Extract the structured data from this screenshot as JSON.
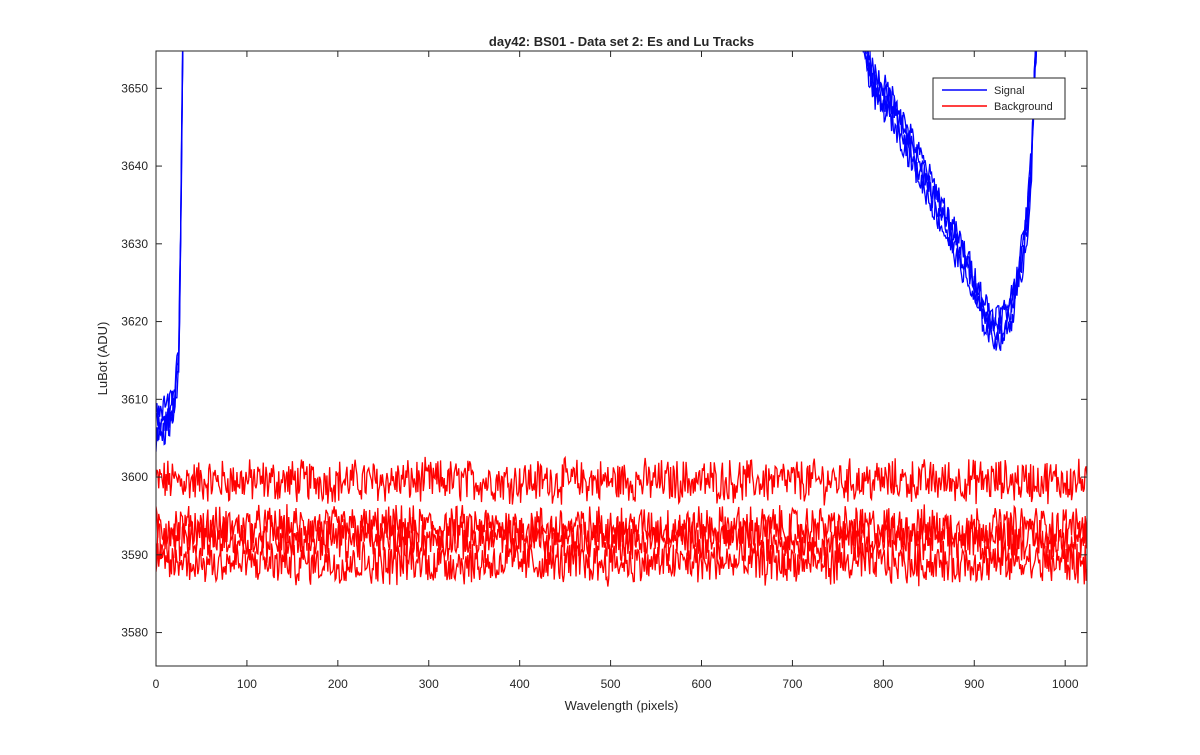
{
  "chart_data": {
    "type": "line",
    "title": "day42: BS01 - Data set 2: Es and Lu Tracks",
    "xlabel": "Wavelength (pixels)",
    "ylabel": "LuBot (ADU)",
    "xlim": [
      0,
      1024
    ],
    "ylim": [
      3575.7,
      3654.8
    ],
    "xticks": [
      0,
      100,
      200,
      300,
      400,
      500,
      600,
      700,
      800,
      900,
      1000
    ],
    "yticks": [
      3580,
      3590,
      3600,
      3610,
      3620,
      3630,
      3640,
      3650
    ],
    "grid": false,
    "legend_position": "top-right",
    "colors": {
      "Signal": "#0000ff",
      "Background": "#ff0000"
    },
    "legend": [
      "Signal",
      "Background"
    ],
    "series": [
      {
        "name": "Signal",
        "color": "#0000ff",
        "traces": 4,
        "x": [
          0,
          10,
          20,
          25,
          27,
          29,
          30,
          770,
          790,
          810,
          830,
          850,
          870,
          890,
          910,
          920,
          930,
          940,
          950,
          958,
          963,
          966,
          970
        ],
        "y": [
          3606,
          3607,
          3609,
          3615,
          3630,
          3650,
          3660,
          3660,
          3650,
          3647,
          3642,
          3637,
          3632,
          3627,
          3621,
          3619,
          3619,
          3621,
          3626,
          3632,
          3640,
          3650,
          3660
        ]
      },
      {
        "name": "Background",
        "color": "#ff0000",
        "traces": 4,
        "x": [
          0,
          1024
        ],
        "levels": [
          3599.5,
          3593.5,
          3592.0,
          3589.0
        ]
      }
    ]
  }
}
